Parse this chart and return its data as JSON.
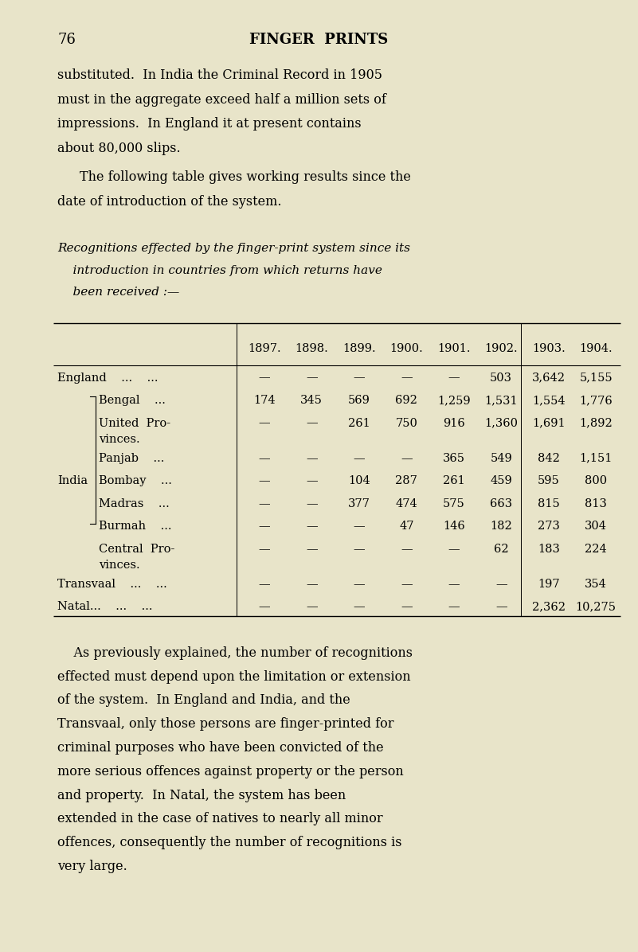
{
  "bg_color": "#e8e4c9",
  "page_number": "76",
  "page_header": "FINGER  PRINTS",
  "body_text_1": "substituted.  In India the Criminal Record in 1905\nmust in the aggregate exceed half a million sets of\nimpressions.  In England it at present contains\nabout 80,000 slips.",
  "body_text_2": "The following table gives working results since the\ndate of introduction of the system.",
  "caption_line1": "Recognitions effected by the finger-print system since its",
  "caption_line2": "    introduction in countries from which returns have",
  "caption_line3": "    been received :—",
  "col_headers": [
    "1897.",
    "1898.",
    "1899.",
    "1900.",
    "1901.",
    "1902.",
    "1903.",
    "1904."
  ],
  "rows": [
    {
      "label_main": "England    ...    ...",
      "label_sub": null,
      "india_word": null,
      "values": [
        "",
        "",
        "",
        "",
        "",
        "503",
        "3,642",
        "5,155"
      ]
    },
    {
      "label_main": "Bengal    ...",
      "label_sub": null,
      "india_word": null,
      "values": [
        "174",
        "345",
        "569",
        "692",
        "1,259",
        "1,531",
        "1,554",
        "1,776"
      ]
    },
    {
      "label_main": "United  Pro-",
      "label_sub": "vinces.",
      "india_word": null,
      "values": [
        "",
        "",
        "261",
        "750",
        "916",
        "1,360",
        "1,691",
        "1,892"
      ]
    },
    {
      "label_main": "Panjab    ...",
      "label_sub": null,
      "india_word": null,
      "values": [
        "",
        "",
        "",
        "",
        "365",
        "549",
        "842",
        "1,151"
      ]
    },
    {
      "label_main": "Bombay    ...",
      "label_sub": null,
      "india_word": "India",
      "values": [
        "",
        "",
        "104",
        "287",
        "261",
        "459",
        "595",
        "800"
      ]
    },
    {
      "label_main": "Madras    ...",
      "label_sub": null,
      "india_word": null,
      "values": [
        "",
        "",
        "377",
        "474",
        "575",
        "663",
        "815",
        "813"
      ]
    },
    {
      "label_main": "Burmah    ...",
      "label_sub": null,
      "india_word": null,
      "values": [
        "",
        "",
        "",
        "47",
        "146",
        "182",
        "273",
        "304"
      ]
    },
    {
      "label_main": "Central  Pro-",
      "label_sub": "vinces.",
      "india_word": null,
      "values": [
        "",
        "",
        "",
        "",
        "",
        "62",
        "183",
        "224"
      ]
    },
    {
      "label_main": "Transvaal    ...    ...",
      "label_sub": null,
      "india_word": null,
      "values": [
        "",
        "",
        "",
        "",
        "",
        "",
        "197",
        "354"
      ]
    },
    {
      "label_main": "Natal...    ...    ...",
      "label_sub": null,
      "india_word": null,
      "values": [
        "",
        "",
        "",
        "",
        "",
        "",
        "2,362",
        "10,275"
      ]
    }
  ],
  "body_text_3_lines": [
    "    As previously explained, the number of recognitions",
    "effected must depend upon the limitation or extension",
    "of the system.  In England and India, and the",
    "Transvaal, only those persons are finger-printed for",
    "criminal purposes who have been convicted of the",
    "more serious offences against property or the person",
    "and property.  In Natal, the system has been",
    "extended in the case of natives to nearly all minor",
    "offences, consequently the number of recognitions is",
    "very large."
  ]
}
